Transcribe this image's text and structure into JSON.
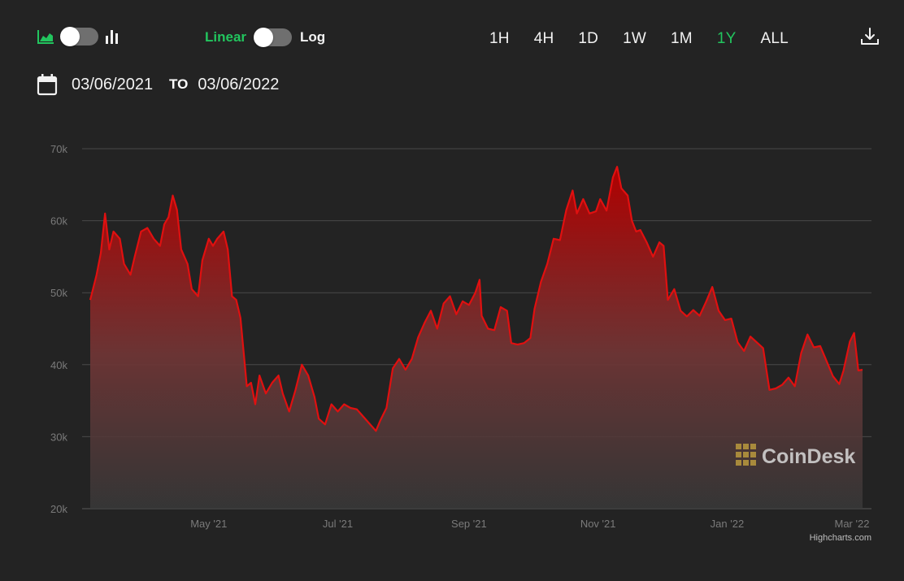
{
  "toolbar": {
    "chart_type_icons": [
      "area-chart-icon",
      "bar-chart-icon"
    ],
    "scale": {
      "linear_label": "Linear",
      "log_label": "Log",
      "selected": "Linear"
    },
    "ranges": [
      {
        "label": "1H",
        "active": false
      },
      {
        "label": "4H",
        "active": false
      },
      {
        "label": "1D",
        "active": false
      },
      {
        "label": "1W",
        "active": false
      },
      {
        "label": "1M",
        "active": false
      },
      {
        "label": "1Y",
        "active": true
      },
      {
        "label": "ALL",
        "active": false
      }
    ],
    "download_icon": "download-icon"
  },
  "date_range": {
    "from": "03/06/2021",
    "to_label": "TO",
    "to": "03/06/2022",
    "icon": "calendar-icon"
  },
  "colors": {
    "accent": "#22c55e",
    "line": "#e01010",
    "background": "#232323"
  },
  "watermark": "CoinDesk",
  "credit": "Highcharts.com",
  "chart_data": {
    "type": "area",
    "x_start": "2021-03-06",
    "x_end": "2022-03-06",
    "ylim": [
      20000,
      70000
    ],
    "yticks": [
      "20k",
      "30k",
      "40k",
      "50k",
      "60k",
      "70k"
    ],
    "xticks": [
      {
        "label": "May '21",
        "date": "2021-05-01"
      },
      {
        "label": "Jul '21",
        "date": "2021-07-01"
      },
      {
        "label": "Sep '21",
        "date": "2021-09-01"
      },
      {
        "label": "Nov '21",
        "date": "2021-11-01"
      },
      {
        "label": "Jan '22",
        "date": "2022-01-01"
      },
      {
        "label": "Mar '22",
        "date": "2022-03-01"
      }
    ],
    "grid": true,
    "series": [
      {
        "points": [
          [
            "2021-03-06",
            49000
          ],
          [
            "2021-03-09",
            52500
          ],
          [
            "2021-03-11",
            55500
          ],
          [
            "2021-03-13",
            61000
          ],
          [
            "2021-03-15",
            56000
          ],
          [
            "2021-03-17",
            58500
          ],
          [
            "2021-03-20",
            57500
          ],
          [
            "2021-03-22",
            54000
          ],
          [
            "2021-03-25",
            52500
          ],
          [
            "2021-03-27",
            55000
          ],
          [
            "2021-03-30",
            58500
          ],
          [
            "2021-04-02",
            59000
          ],
          [
            "2021-04-05",
            57500
          ],
          [
            "2021-04-08",
            56500
          ],
          [
            "2021-04-10",
            59500
          ],
          [
            "2021-04-12",
            60500
          ],
          [
            "2021-04-14",
            63500
          ],
          [
            "2021-04-16",
            61500
          ],
          [
            "2021-04-18",
            56000
          ],
          [
            "2021-04-21",
            54000
          ],
          [
            "2021-04-23",
            50500
          ],
          [
            "2021-04-26",
            49500
          ],
          [
            "2021-04-28",
            54500
          ],
          [
            "2021-05-01",
            57500
          ],
          [
            "2021-05-03",
            56500
          ],
          [
            "2021-05-05",
            57500
          ],
          [
            "2021-05-08",
            58500
          ],
          [
            "2021-05-10",
            56000
          ],
          [
            "2021-05-12",
            49500
          ],
          [
            "2021-05-14",
            49000
          ],
          [
            "2021-05-16",
            46500
          ],
          [
            "2021-05-19",
            37000
          ],
          [
            "2021-05-21",
            37500
          ],
          [
            "2021-05-23",
            34500
          ],
          [
            "2021-05-25",
            38500
          ],
          [
            "2021-05-28",
            36000
          ],
          [
            "2021-05-31",
            37500
          ],
          [
            "2021-06-03",
            38500
          ],
          [
            "2021-06-05",
            36000
          ],
          [
            "2021-06-08",
            33500
          ],
          [
            "2021-06-11",
            36500
          ],
          [
            "2021-06-14",
            40000
          ],
          [
            "2021-06-17",
            38500
          ],
          [
            "2021-06-20",
            35500
          ],
          [
            "2021-06-22",
            32500
          ],
          [
            "2021-06-25",
            31700
          ],
          [
            "2021-06-28",
            34500
          ],
          [
            "2021-07-01",
            33500
          ],
          [
            "2021-07-04",
            34500
          ],
          [
            "2021-07-07",
            34000
          ],
          [
            "2021-07-10",
            33800
          ],
          [
            "2021-07-13",
            32800
          ],
          [
            "2021-07-16",
            31800
          ],
          [
            "2021-07-19",
            30800
          ],
          [
            "2021-07-21",
            32200
          ],
          [
            "2021-07-24",
            34000
          ],
          [
            "2021-07-27",
            39500
          ],
          [
            "2021-07-30",
            40800
          ],
          [
            "2021-08-02",
            39300
          ],
          [
            "2021-08-05",
            40800
          ],
          [
            "2021-08-08",
            43800
          ],
          [
            "2021-08-11",
            45800
          ],
          [
            "2021-08-14",
            47500
          ],
          [
            "2021-08-17",
            45000
          ],
          [
            "2021-08-20",
            48500
          ],
          [
            "2021-08-23",
            49500
          ],
          [
            "2021-08-26",
            47000
          ],
          [
            "2021-08-29",
            48800
          ],
          [
            "2021-09-01",
            48300
          ],
          [
            "2021-09-04",
            50000
          ],
          [
            "2021-09-06",
            51800
          ],
          [
            "2021-09-07",
            46800
          ],
          [
            "2021-09-10",
            45000
          ],
          [
            "2021-09-13",
            44800
          ],
          [
            "2021-09-16",
            48000
          ],
          [
            "2021-09-19",
            47500
          ],
          [
            "2021-09-21",
            43000
          ],
          [
            "2021-09-24",
            42800
          ],
          [
            "2021-09-27",
            43000
          ],
          [
            "2021-09-30",
            43700
          ],
          [
            "2021-10-02",
            47800
          ],
          [
            "2021-10-05",
            51500
          ],
          [
            "2021-10-08",
            54000
          ],
          [
            "2021-10-11",
            57500
          ],
          [
            "2021-10-14",
            57300
          ],
          [
            "2021-10-17",
            61500
          ],
          [
            "2021-10-20",
            64200
          ],
          [
            "2021-10-22",
            61000
          ],
          [
            "2021-10-25",
            63000
          ],
          [
            "2021-10-28",
            61000
          ],
          [
            "2021-10-31",
            61300
          ],
          [
            "2021-11-02",
            63000
          ],
          [
            "2021-11-05",
            61400
          ],
          [
            "2021-11-08",
            66000
          ],
          [
            "2021-11-10",
            67500
          ],
          [
            "2021-11-12",
            64500
          ],
          [
            "2021-11-15",
            63500
          ],
          [
            "2021-11-17",
            60000
          ],
          [
            "2021-11-19",
            58500
          ],
          [
            "2021-11-21",
            58700
          ],
          [
            "2021-11-24",
            57000
          ],
          [
            "2021-11-27",
            55000
          ],
          [
            "2021-11-30",
            57000
          ],
          [
            "2021-12-02",
            56500
          ],
          [
            "2021-12-04",
            49000
          ],
          [
            "2021-12-07",
            50500
          ],
          [
            "2021-12-10",
            47500
          ],
          [
            "2021-12-13",
            46700
          ],
          [
            "2021-12-16",
            47600
          ],
          [
            "2021-12-19",
            46800
          ],
          [
            "2021-12-22",
            48700
          ],
          [
            "2021-12-25",
            50800
          ],
          [
            "2021-12-28",
            47500
          ],
          [
            "2021-12-31",
            46200
          ],
          [
            "2022-01-03",
            46400
          ],
          [
            "2022-01-06",
            43100
          ],
          [
            "2022-01-09",
            41900
          ],
          [
            "2022-01-12",
            43900
          ],
          [
            "2022-01-15",
            43100
          ],
          [
            "2022-01-18",
            42300
          ],
          [
            "2022-01-21",
            36500
          ],
          [
            "2022-01-24",
            36700
          ],
          [
            "2022-01-27",
            37200
          ],
          [
            "2022-01-30",
            38200
          ],
          [
            "2022-02-02",
            37000
          ],
          [
            "2022-02-05",
            41600
          ],
          [
            "2022-02-08",
            44200
          ],
          [
            "2022-02-11",
            42400
          ],
          [
            "2022-02-14",
            42600
          ],
          [
            "2022-02-17",
            40500
          ],
          [
            "2022-02-20",
            38400
          ],
          [
            "2022-02-23",
            37300
          ],
          [
            "2022-02-25",
            39200
          ],
          [
            "2022-02-28",
            43200
          ],
          [
            "2022-03-02",
            44400
          ],
          [
            "2022-03-04",
            39200
          ],
          [
            "2022-03-06",
            39300
          ]
        ]
      }
    ]
  }
}
